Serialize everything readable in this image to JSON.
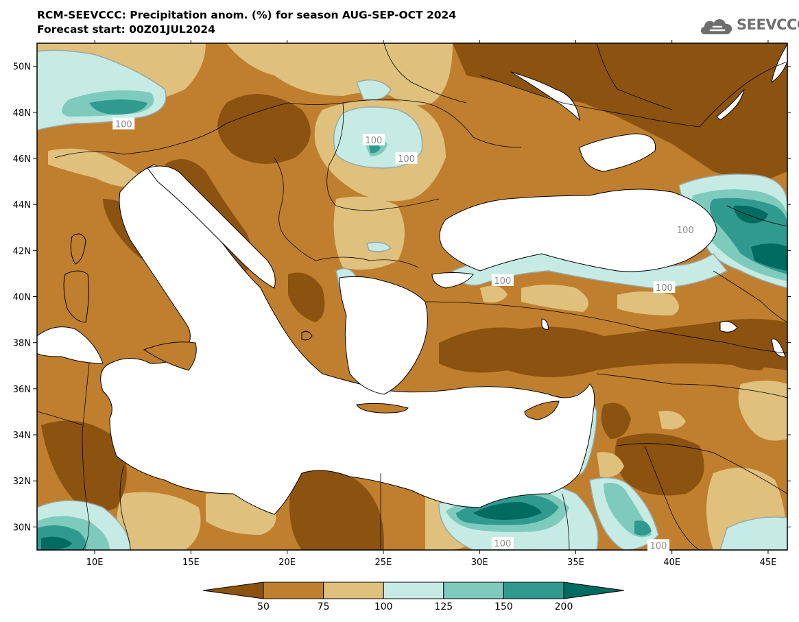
{
  "header": {
    "title_line1": "RCM-SEEVCCC: Precipitation anom. (%) for season AUG-SEP-OCT 2024",
    "title_line2": "Forecast start: 00Z01JUL2024"
  },
  "logo": {
    "text": "SEEVCCC",
    "icon": "cloud-icon"
  },
  "map": {
    "lon_range": [
      7,
      46
    ],
    "lat_range": [
      29,
      51
    ],
    "lon_ticks": [
      {
        "value": 10,
        "label": "10E"
      },
      {
        "value": 15,
        "label": "15E"
      },
      {
        "value": 20,
        "label": "20E"
      },
      {
        "value": 25,
        "label": "25E"
      },
      {
        "value": 30,
        "label": "30E"
      },
      {
        "value": 35,
        "label": "35E"
      },
      {
        "value": 40,
        "label": "40E"
      },
      {
        "value": 45,
        "label": "45E"
      }
    ],
    "lat_ticks": [
      {
        "value": 50,
        "label": "50N"
      },
      {
        "value": 48,
        "label": "48N"
      },
      {
        "value": 46,
        "label": "46N"
      },
      {
        "value": 44,
        "label": "44N"
      },
      {
        "value": 42,
        "label": "42N"
      },
      {
        "value": 40,
        "label": "40N"
      },
      {
        "value": 38,
        "label": "38N"
      },
      {
        "value": 36,
        "label": "36N"
      },
      {
        "value": 34,
        "label": "34N"
      },
      {
        "value": 32,
        "label": "32N"
      },
      {
        "value": 30,
        "label": "30N"
      }
    ],
    "contour_labels": [
      {
        "text": "100",
        "lon": 11.5,
        "lat": 47.5
      },
      {
        "text": "100",
        "lon": 24.5,
        "lat": 46.8
      },
      {
        "text": "100",
        "lon": 26.2,
        "lat": 46.0
      },
      {
        "text": "100",
        "lon": 40.7,
        "lat": 42.9
      },
      {
        "text": "100",
        "lon": 31.2,
        "lat": 40.7
      },
      {
        "text": "100",
        "lon": 39.6,
        "lat": 40.4
      },
      {
        "text": "100",
        "lon": 31.2,
        "lat": 29.3
      },
      {
        "text": "100",
        "lon": 39.3,
        "lat": 29.2
      }
    ]
  },
  "colorbar": {
    "levels": [
      "50",
      "75",
      "100",
      "125",
      "150",
      "200"
    ],
    "colors": [
      "#8c520f",
      "#bf7f2e",
      "#dfc07c",
      "#c6ebe4",
      "#7ecbbe",
      "#319a8f",
      "#006b60"
    ]
  },
  "colors": {
    "very_dry": "#8c520f",
    "dry": "#bf7f2e",
    "slightly_dry": "#dfc07c",
    "slightly_wet": "#c6ebe4",
    "wet": "#7ecbbe",
    "very_wet": "#319a8f",
    "extreme_wet": "#006b60",
    "sea": "#ffffff"
  }
}
